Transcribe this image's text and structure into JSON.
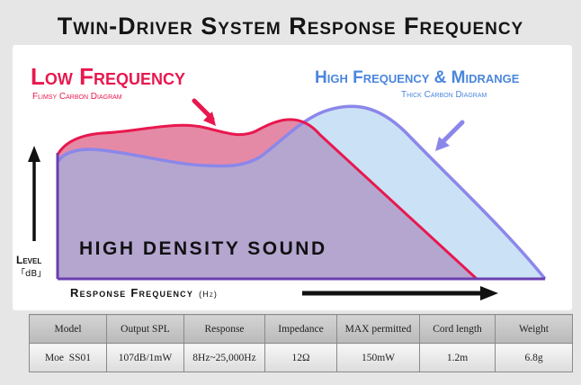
{
  "title": "Twin-Driver System Response Frequency",
  "diagram": {
    "low": {
      "title": "Low Frequency",
      "subtitle": "Flimsy Carbon Diagram"
    },
    "high": {
      "title": "High Frequency & Midrange",
      "subtitle": "Thick Carbon Diagram"
    },
    "center_text": "HIGH DENSITY SOUND",
    "y_axis": {
      "label": "Level",
      "unit": "「dB」"
    },
    "x_axis": {
      "label": "Response Frequency",
      "unit": "(Hz)"
    },
    "colors": {
      "low_fill": "#e27d9c",
      "low_stroke": "#e8184f",
      "high_fill": "#c5def5",
      "high_stroke": "#8b87ea",
      "overlap_fill": "#b5a6d0",
      "low_title": "#e8184f",
      "high_title": "#4a86dd"
    }
  },
  "specs": {
    "headers": [
      "Model",
      "Output SPL",
      "Response",
      "Impedance",
      "MAX permitted",
      "Cord length",
      "Weight"
    ],
    "values": [
      "Moe  SS01",
      "107dB/1mW",
      "8Hz~25,000Hz",
      "12Ω",
      "150mW",
      "1.2m",
      "6.8g"
    ]
  }
}
